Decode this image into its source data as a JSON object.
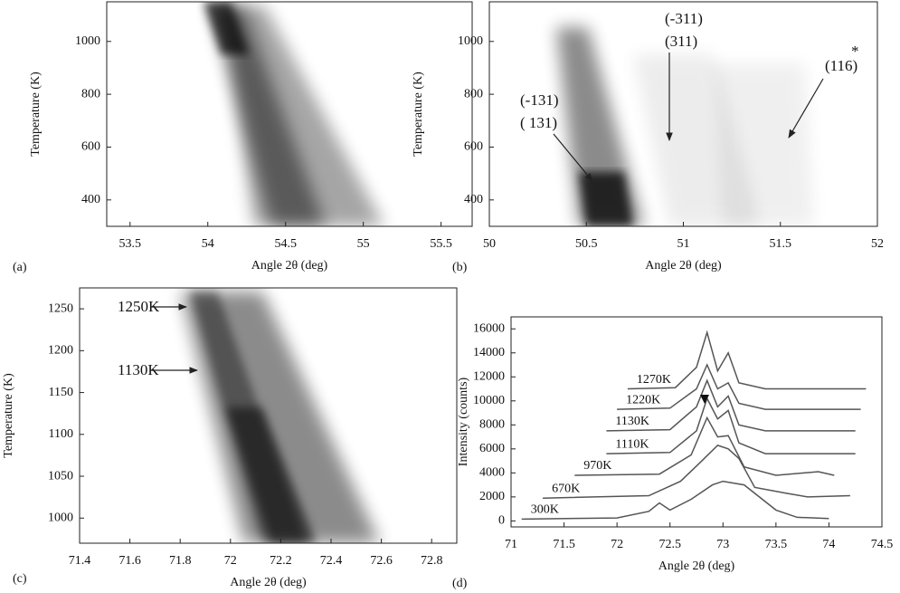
{
  "chart_data": [
    {
      "type": "heatmap",
      "label": "(a)",
      "xlabel": "Angle 2θ (deg)",
      "ylabel": "Temperature (K)",
      "xlim": [
        53.35,
        55.7
      ],
      "xticks": [
        53.5,
        54,
        54.5,
        55,
        55.5
      ],
      "ylim": [
        300,
        1150
      ],
      "yticks": [
        400,
        600,
        800,
        1000
      ],
      "annotations": []
    },
    {
      "type": "heatmap",
      "label": "(b)",
      "xlabel": "Angle 2θ (deg)",
      "ylabel": "Temperature (K)",
      "xlim": [
        50,
        52
      ],
      "xticks": [
        50,
        50.5,
        51,
        51.5,
        52
      ],
      "ylim": [
        300,
        1150
      ],
      "yticks": [
        400,
        600,
        800,
        1000
      ],
      "annotations": [
        "(-131)",
        "( 131)",
        "(-311)",
        "(311)",
        "(116)",
        "*"
      ]
    },
    {
      "type": "heatmap",
      "label": "(c)",
      "xlabel": "Angle 2θ (deg)",
      "ylabel": "Temperature (K)",
      "xlim": [
        71.4,
        72.9
      ],
      "xticks": [
        71.4,
        71.6,
        71.8,
        72,
        72.2,
        72.4,
        72.6,
        72.8
      ],
      "ylim": [
        970,
        1275
      ],
      "yticks": [
        1000,
        1050,
        1100,
        1150,
        1200,
        1250
      ],
      "annotations": [
        "1250K",
        "1130K"
      ]
    },
    {
      "type": "line",
      "label": "(d)",
      "xlabel": "Angle 2θ (deg)",
      "ylabel": "Intensity (counts)",
      "xlim": [
        71,
        74.5
      ],
      "xticks": [
        71,
        71.5,
        72,
        72.5,
        73,
        73.5,
        74,
        74.5
      ],
      "ylim": [
        -500,
        17000
      ],
      "yticks": [
        0,
        2000,
        4000,
        6000,
        8000,
        10000,
        12000,
        14000,
        16000
      ],
      "series": [
        {
          "name": "300K",
          "color": "#555",
          "x": [
            71.1,
            72.0,
            72.3,
            72.4,
            72.5,
            72.7,
            72.9,
            73.0,
            73.2,
            73.5,
            73.7,
            74.0
          ],
          "values": [
            150,
            250,
            800,
            1500,
            900,
            1800,
            3000,
            3300,
            3000,
            900,
            300,
            200
          ]
        },
        {
          "name": "670K",
          "color": "#555",
          "x": [
            71.3,
            72.3,
            72.6,
            72.8,
            72.95,
            73.05,
            73.15,
            73.3,
            73.6,
            73.8,
            74.2
          ],
          "values": [
            1900,
            2100,
            3300,
            5000,
            6300,
            6000,
            5200,
            2800,
            2300,
            2000,
            2100
          ]
        },
        {
          "name": "970K",
          "color": "#555",
          "x": [
            71.6,
            72.4,
            72.7,
            72.85,
            72.95,
            73.05,
            73.2,
            73.5,
            73.9,
            74.05
          ],
          "values": [
            3800,
            3900,
            5500,
            8600,
            7000,
            7100,
            4500,
            3800,
            4100,
            3800
          ]
        },
        {
          "name": "1110K",
          "color": "#555",
          "x": [
            71.9,
            72.5,
            72.75,
            72.85,
            72.95,
            73.05,
            73.15,
            73.4,
            74.25
          ],
          "values": [
            5600,
            5700,
            7500,
            10200,
            8500,
            9200,
            6500,
            5600,
            5600
          ]
        },
        {
          "name": "1130K",
          "color": "#555",
          "x": [
            71.9,
            72.5,
            72.75,
            72.85,
            72.95,
            73.05,
            73.15,
            73.4,
            74.25
          ],
          "values": [
            7500,
            7600,
            9500,
            11700,
            9500,
            10400,
            8000,
            7500,
            7500
          ]
        },
        {
          "name": "1220K",
          "color": "#555",
          "x": [
            72.0,
            72.5,
            72.75,
            72.85,
            72.95,
            73.05,
            73.15,
            73.4,
            74.3
          ],
          "values": [
            9300,
            9400,
            11000,
            13000,
            11000,
            11500,
            9800,
            9300,
            9300
          ]
        },
        {
          "name": "1270K",
          "color": "#555",
          "x": [
            72.1,
            72.55,
            72.75,
            72.85,
            72.95,
            73.05,
            73.15,
            73.4,
            74.35
          ],
          "values": [
            11000,
            11100,
            12800,
            15700,
            12500,
            14000,
            11500,
            11000,
            11000
          ]
        }
      ]
    }
  ]
}
